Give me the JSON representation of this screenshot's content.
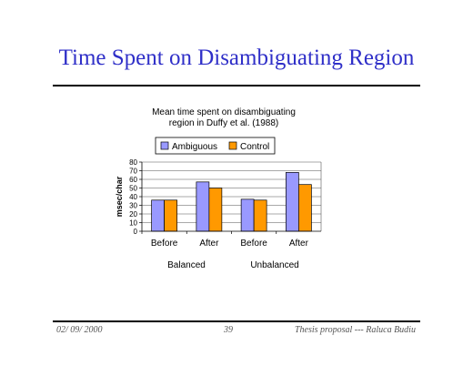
{
  "slide": {
    "title": "Time Spent on Disambiguating Region",
    "footer": {
      "date": "02/ 09/ 2000",
      "page": "39",
      "right": "Thesis proposal --- Raluca Budiu"
    }
  },
  "chart_data": {
    "type": "bar",
    "title_lines": [
      "Mean time  spent on disambiguating",
      "region in  Duffy et al. (1988)"
    ],
    "ylabel": "msec/char",
    "xlabel": "",
    "ylim": [
      0,
      80
    ],
    "yticks": [
      0,
      10,
      20,
      30,
      40,
      50,
      60,
      70,
      80
    ],
    "categories": [
      "Before",
      "After",
      "Before",
      "After"
    ],
    "groups": [
      {
        "label": "Balanced",
        "span": [
          0,
          1
        ]
      },
      {
        "label": "Unbalanced",
        "span": [
          2,
          3
        ]
      }
    ],
    "series": [
      {
        "name": "Ambiguous",
        "color": "#9999ff",
        "values": [
          36,
          57,
          37,
          68
        ]
      },
      {
        "name": "Control",
        "color": "#ff9900",
        "values": [
          36,
          50,
          36,
          54
        ]
      }
    ],
    "grid": true,
    "legend_position": "top"
  }
}
